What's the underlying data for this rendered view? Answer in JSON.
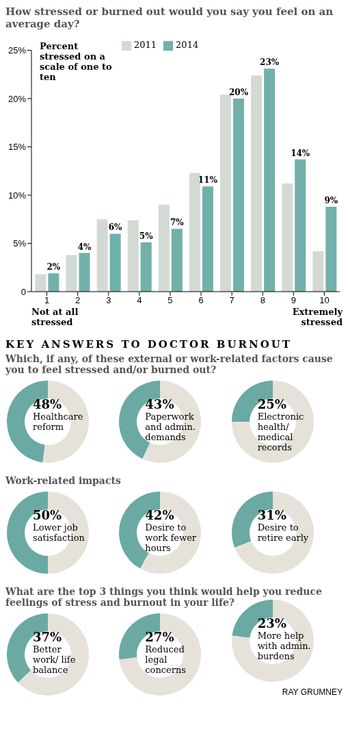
{
  "chart_data": [
    {
      "type": "bar",
      "title": "How stressed or burned out would you say you feel on an average day?",
      "legend_title": "Percent stressed on a scale of one to ten",
      "categories": [
        "1",
        "2",
        "3",
        "4",
        "5",
        "6",
        "7",
        "8",
        "9",
        "10"
      ],
      "series": [
        {
          "name": "2011",
          "color": "#d3dad3",
          "values": [
            1.8,
            3.8,
            7.5,
            7.4,
            9.0,
            12.3,
            20.4,
            22.4,
            11.2,
            4.2
          ]
        },
        {
          "name": "2014",
          "color": "#72b0ab",
          "values": [
            1.9,
            4.0,
            6.0,
            5.1,
            6.5,
            10.9,
            20.0,
            23.1,
            13.7,
            8.8
          ],
          "value_labels": [
            "2%",
            "4%",
            "6%",
            "5%",
            "7%",
            "11%",
            "20%",
            "23%",
            "14%",
            "9%"
          ]
        }
      ],
      "ylim": [
        0,
        25
      ],
      "yticks": [
        0,
        {
          "value": 5,
          "label": "5%"
        },
        {
          "value": 10,
          "label": "10%"
        },
        {
          "value": 15,
          "label": "15%"
        },
        {
          "value": 20,
          "label": "20%"
        },
        {
          "value": 25,
          "label": "25%"
        }
      ],
      "grid": false,
      "legend": "top left",
      "annotations": [
        "Not at all stressed",
        "Extremely stressed"
      ]
    },
    {
      "type": "donut",
      "title": "KEY ANSWERS TO DOCTOR BURNOUT",
      "subtitle": "Which, if any, of these external or work-related factors cause you to feel stressed and/or burned out?",
      "categories": [
        "Healthcare reform",
        null
      ],
      "values": [
        48,
        52
      ],
      "value_labels": [
        "48%",
        null
      ],
      "colors": [
        "#6aa9a4",
        "#e6e2da"
      ]
    },
    {
      "type": "donut",
      "categories": [
        "Paperwork and admin. demands",
        null
      ],
      "values": [
        43,
        57
      ],
      "value_labels": [
        "43%",
        null
      ],
      "colors": [
        "#6aa9a4",
        "#e6e2da"
      ]
    },
    {
      "type": "donut",
      "categories": [
        "Electronic health/ medical records",
        null
      ],
      "values": [
        25,
        75
      ],
      "value_labels": [
        "25%",
        null
      ],
      "colors": [
        "#6aa9a4",
        "#e6e2da"
      ]
    },
    {
      "type": "donut",
      "subtitle": "Work-related impacts",
      "categories": [
        "Lower job satisfaction",
        null
      ],
      "values": [
        50,
        50
      ],
      "value_labels": [
        "50%",
        null
      ],
      "colors": [
        "#6aa9a4",
        "#e6e2da"
      ]
    },
    {
      "type": "donut",
      "categories": [
        "Desire to work fewer hours",
        null
      ],
      "values": [
        42,
        58
      ],
      "value_labels": [
        "42%",
        null
      ],
      "colors": [
        "#6aa9a4",
        "#e6e2da"
      ]
    },
    {
      "type": "donut",
      "categories": [
        "Desire to retire early",
        null
      ],
      "values": [
        31,
        69
      ],
      "value_labels": [
        "31%",
        null
      ],
      "colors": [
        "#6aa9a4",
        "#e6e2da"
      ]
    },
    {
      "type": "donut",
      "subtitle": "What are the top 3 things you think would help you reduce feelings of stress and burnout in your life?",
      "categories": [
        "Better work/ life balance",
        null
      ],
      "values": [
        37,
        63
      ],
      "value_labels": [
        "37%",
        null
      ],
      "colors": [
        "#6aa9a4",
        "#e6e2da"
      ]
    },
    {
      "type": "donut",
      "categories": [
        "Reduced legal concerns",
        null
      ],
      "values": [
        27,
        73
      ],
      "value_labels": [
        "27%",
        null
      ],
      "colors": [
        "#6aa9a4",
        "#e6e2da"
      ]
    },
    {
      "type": "donut",
      "categories": [
        "More help with admin. burdens",
        null
      ],
      "values": [
        23,
        77
      ],
      "value_labels": [
        "23%",
        null
      ],
      "colors": [
        "#6aa9a4",
        "#e6e2da"
      ],
      "annotations": [
        "RAY GRUMNEY"
      ]
    }
  ]
}
